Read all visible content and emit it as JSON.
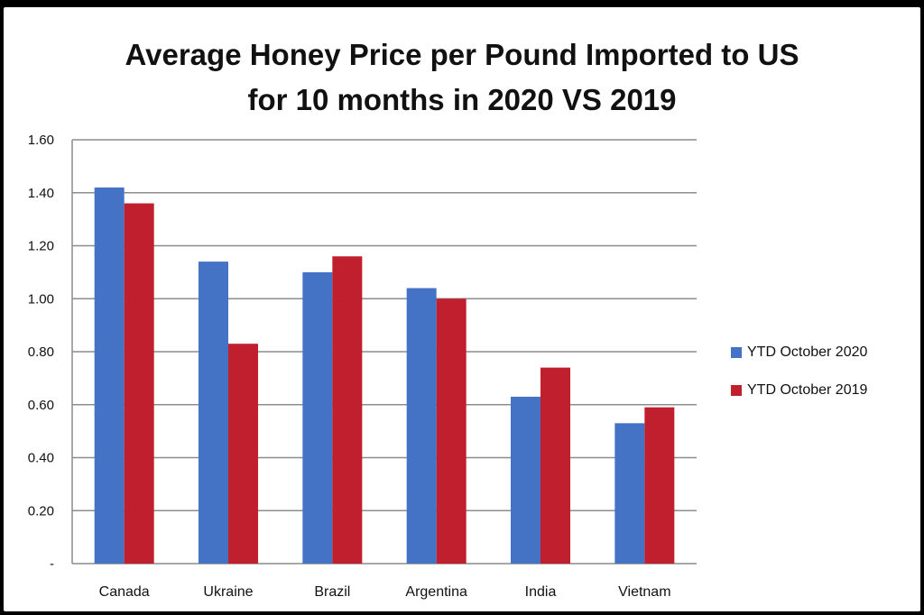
{
  "chart_data": {
    "type": "bar",
    "title": "Average Honey Price per Pound Imported to US",
    "subtitle": "for 10 months in 2020 VS 2019",
    "categories": [
      "Canada",
      "Ukraine",
      "Brazil",
      "Argentina",
      "India",
      "Vietnam"
    ],
    "series": [
      {
        "name": "YTD October 2020",
        "color": "#4472c4",
        "values": [
          1.42,
          1.14,
          1.1,
          1.04,
          0.63,
          0.53
        ]
      },
      {
        "name": "YTD October 2019",
        "color": "#c0202e",
        "values": [
          1.36,
          0.83,
          1.16,
          1.0,
          0.74,
          0.59
        ]
      }
    ],
    "ylim": [
      0,
      1.6
    ],
    "yticks": [
      "-",
      "0.20",
      "0.40",
      "0.60",
      "0.80",
      "1.00",
      "1.20",
      "1.40",
      "1.60"
    ],
    "grid": true,
    "legend_position": "right"
  }
}
